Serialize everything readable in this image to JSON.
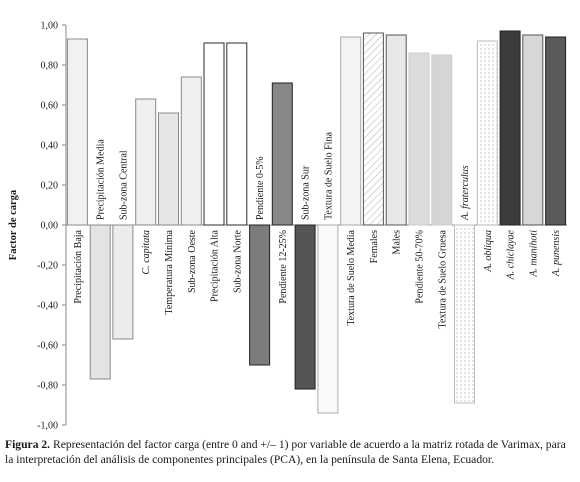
{
  "chart_data": {
    "type": "bar",
    "ylabel": "Factor de carga",
    "ylim": [
      -1.0,
      1.0
    ],
    "yticks": [
      "1,00",
      "0,80",
      "0,60",
      "0,40",
      "0,20",
      "0,00",
      "-0,20",
      "-0,40",
      "-0,60",
      "-0,80",
      "-1,00"
    ],
    "ytick_values": [
      1.0,
      0.8,
      0.6,
      0.4,
      0.2,
      0.0,
      -0.2,
      -0.4,
      -0.6,
      -0.8,
      -1.0
    ],
    "grid": false,
    "categories": [
      "Precipitación Baja",
      "Precipitación Media",
      "Sub-zona Central",
      "C. capitata",
      "Temperatura Mínima",
      "Sub-zona Oeste",
      "Precipitación Alta",
      "Sub-zona Norte",
      "Pendiente 0-5%",
      "Pendiente 12-25%",
      "Sub-zona Sur",
      "Textura de Suelo Fina",
      "Textura de Suelo Media",
      "Females",
      "Males",
      "Pendiente 50-70%",
      "Textura de Suelo Gruesa",
      "A. fraterculus",
      "A. obliqua",
      "A. chiclayae",
      "A. manihoti",
      "A. punensis"
    ],
    "italic_categories": [
      "C. capitata",
      "A. fraterculus",
      "A. obliqua",
      "A. chiclayae",
      "A. manihoti",
      "A. punensis"
    ],
    "values": [
      0.93,
      -0.77,
      -0.57,
      0.63,
      0.56,
      0.74,
      0.91,
      0.91,
      -0.7,
      0.71,
      -0.82,
      -0.94,
      0.94,
      0.96,
      0.95,
      0.86,
      0.85,
      -0.89,
      0.92,
      0.97,
      0.95,
      0.94
    ],
    "bar_colors": [
      "#f1f1f1",
      "#e3e3e3",
      "#ececec",
      "#efefef",
      "#e6e6e6",
      "#f0f0f0",
      "#ffffff",
      "#ffffff",
      "#7c7c7c",
      "#888888",
      "#555555",
      "#f9f9f9",
      "#f3f3f3",
      "hatch",
      "#e8e8e8",
      "#dcdcdc",
      "#d5d5d5",
      "dots",
      "dots",
      "#3c3c3c",
      "#d7d7d7",
      "#5a5a5a"
    ],
    "bar_strokes": [
      "#8a8a8a",
      "#8a8a8a",
      "#8a8a8a",
      "#8a8a8a",
      "#8a8a8a",
      "#8a8a8a",
      "#2b2b2b",
      "#2b2b2b",
      "#222222",
      "#222222",
      "#222222",
      "#aaaaaa",
      "#aaaaaa",
      "#555555",
      "#555555",
      "#cccccc",
      "#cccccc",
      "#bbbbbb",
      "#bbbbbb",
      "#222222",
      "#555555",
      "#222222"
    ]
  },
  "caption": {
    "label": "Figura 2.",
    "text": " Representación del factor carga (entre 0 and +/– 1) por variable de acuerdo a la matriz rotada de Varimax, para la interpretación del análisis de componentes principales (PCA), en la península de Santa Elena, Ecuador."
  }
}
